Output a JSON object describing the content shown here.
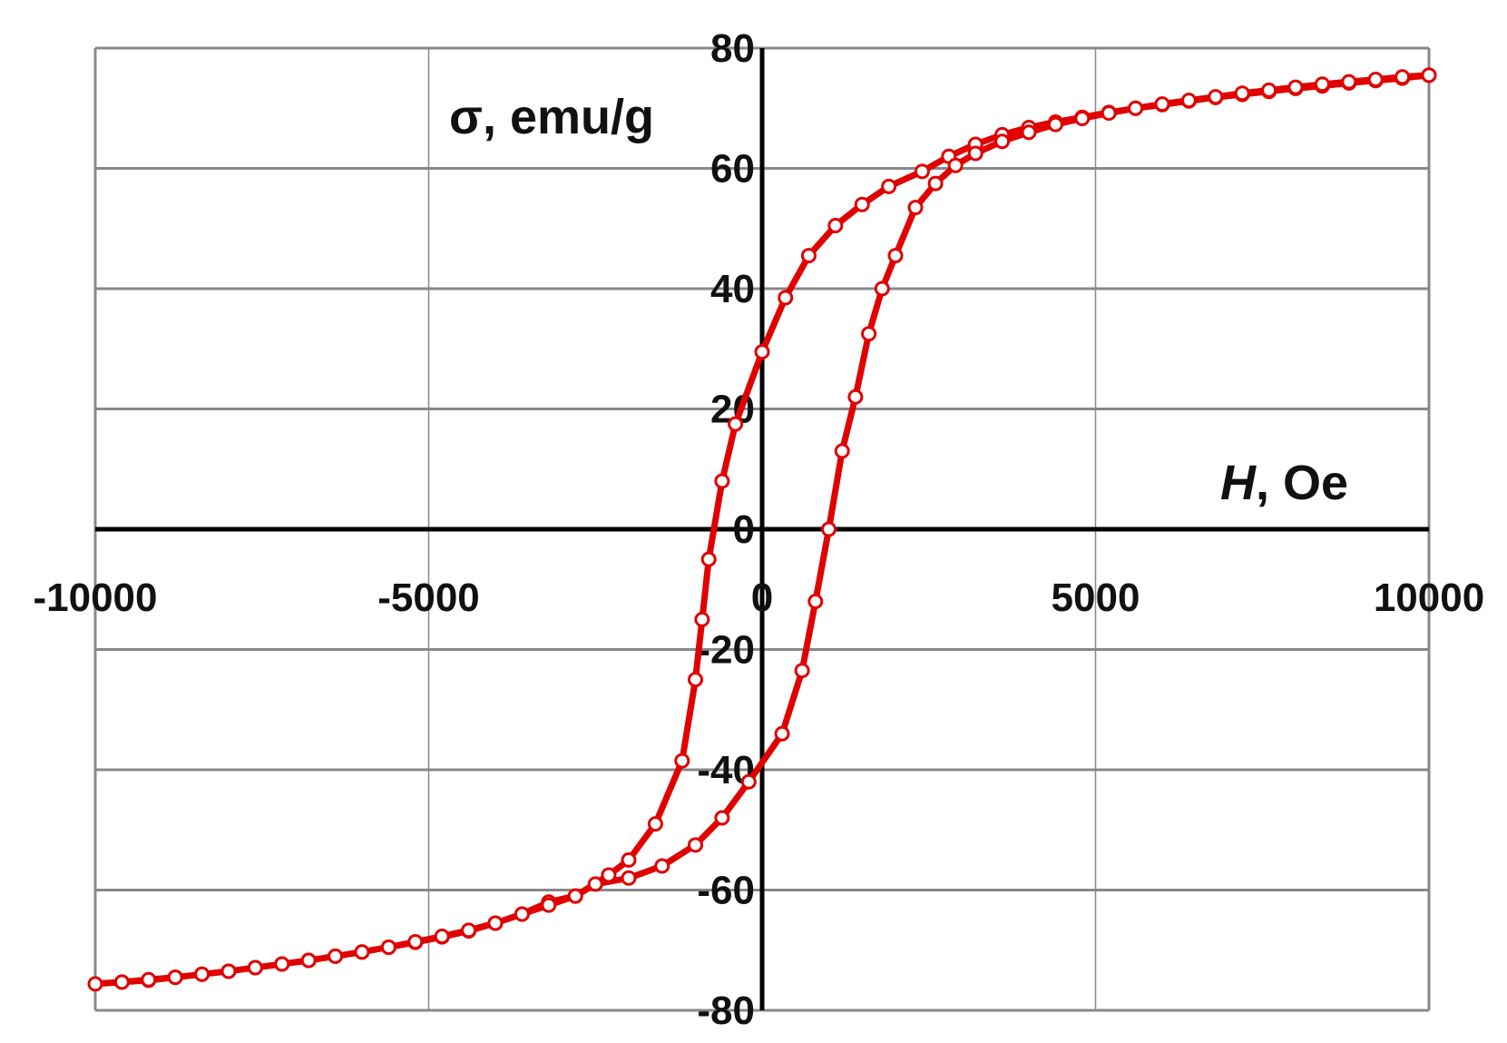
{
  "chart_data": {
    "type": "scatter",
    "xlabel_var": "H",
    "xlabel_unit": ", Oe",
    "ylabel": "σ, emu/g",
    "xlim": [
      -10000,
      10000
    ],
    "ylim": [
      -80,
      80
    ],
    "x_ticks": [
      -10000,
      -5000,
      0,
      5000,
      10000
    ],
    "y_ticks": [
      -80,
      -60,
      -40,
      -20,
      0,
      20,
      40,
      60,
      80
    ],
    "x_tick_labels": [
      "-10000",
      "-5000",
      "0",
      "5000",
      "10000"
    ],
    "y_tick_labels": [
      "-80",
      "-60",
      "-40",
      "-20",
      "0",
      "20",
      "40",
      "60",
      "80"
    ],
    "grid": true,
    "colors": {
      "series": "#e00000",
      "marker_fill": "#ffffff",
      "grid": "#888888",
      "axis": "#000000"
    },
    "series": [
      {
        "points": [
          [
            10000,
            75.5
          ],
          [
            9600,
            75.0
          ],
          [
            9200,
            74.6
          ],
          [
            8800,
            74.2
          ],
          [
            8400,
            73.7
          ],
          [
            8000,
            73.3
          ],
          [
            7600,
            72.8
          ],
          [
            7200,
            72.3
          ],
          [
            6800,
            71.8
          ],
          [
            6400,
            71.2
          ],
          [
            6000,
            70.6
          ],
          [
            5600,
            70.0
          ],
          [
            5200,
            69.3
          ],
          [
            4800,
            68.5
          ],
          [
            4400,
            67.7
          ],
          [
            4000,
            66.8
          ],
          [
            3600,
            65.6
          ],
          [
            3200,
            64.0
          ],
          [
            2800,
            62.0
          ],
          [
            2400,
            59.5
          ],
          [
            1900,
            57.0
          ],
          [
            1500,
            54.0
          ],
          [
            1100,
            50.5
          ],
          [
            700,
            45.5
          ],
          [
            350,
            38.5
          ],
          [
            0,
            29.5
          ],
          [
            -400,
            17.5
          ],
          [
            -600,
            8.0
          ],
          [
            -800,
            -5.0
          ],
          [
            -900,
            -15.0
          ],
          [
            -1000,
            -25.0
          ],
          [
            -1200,
            -38.5
          ],
          [
            -1600,
            -49.0
          ],
          [
            -2000,
            -55.0
          ],
          [
            -2300,
            -57.5
          ],
          [
            -2800,
            -61.0
          ],
          [
            -3200,
            -62.0
          ],
          [
            -3600,
            -64.0
          ],
          [
            -4000,
            -65.5
          ],
          [
            -4400,
            -66.8
          ],
          [
            -4800,
            -67.8
          ],
          [
            -5200,
            -68.7
          ],
          [
            -5600,
            -69.5
          ],
          [
            -6000,
            -70.3
          ],
          [
            -6400,
            -71.0
          ],
          [
            -6800,
            -71.7
          ],
          [
            -7200,
            -72.3
          ],
          [
            -7600,
            -72.9
          ],
          [
            -8000,
            -73.5
          ],
          [
            -8400,
            -74.0
          ],
          [
            -8800,
            -74.5
          ],
          [
            -9200,
            -75.0
          ],
          [
            -9600,
            -75.3
          ],
          [
            -10000,
            -75.6
          ],
          [
            -9600,
            -75.3
          ],
          [
            -9200,
            -74.9
          ],
          [
            -8800,
            -74.5
          ],
          [
            -8400,
            -74.0
          ],
          [
            -8000,
            -73.5
          ],
          [
            -7600,
            -72.9
          ],
          [
            -7200,
            -72.3
          ],
          [
            -6800,
            -71.7
          ],
          [
            -6400,
            -71.0
          ],
          [
            -6000,
            -70.3
          ],
          [
            -5600,
            -69.5
          ],
          [
            -5200,
            -68.6
          ],
          [
            -4800,
            -67.7
          ],
          [
            -4400,
            -66.7
          ],
          [
            -4000,
            -65.5
          ],
          [
            -3600,
            -64.0
          ],
          [
            -3200,
            -62.5
          ],
          [
            -2800,
            -61.0
          ],
          [
            -2500,
            -59.0
          ],
          [
            -2000,
            -58.0
          ],
          [
            -1500,
            -56.0
          ],
          [
            -1000,
            -52.5
          ],
          [
            -600,
            -48.0
          ],
          [
            -200,
            -42.0
          ],
          [
            300,
            -34.0
          ],
          [
            600,
            -23.5
          ],
          [
            800,
            -12.0
          ],
          [
            1000,
            0.0
          ],
          [
            1200,
            13.0
          ],
          [
            1400,
            22.0
          ],
          [
            1600,
            32.5
          ],
          [
            1800,
            40.0
          ],
          [
            2000,
            45.5
          ],
          [
            2300,
            53.5
          ],
          [
            2600,
            57.5
          ],
          [
            2900,
            60.5
          ],
          [
            3200,
            62.5
          ],
          [
            3600,
            64.5
          ],
          [
            4000,
            66.0
          ],
          [
            4400,
            67.3
          ],
          [
            4800,
            68.3
          ],
          [
            5200,
            69.2
          ],
          [
            5600,
            70.0
          ],
          [
            6000,
            70.7
          ],
          [
            6400,
            71.3
          ],
          [
            6800,
            71.9
          ],
          [
            7200,
            72.5
          ],
          [
            7600,
            73.0
          ],
          [
            8000,
            73.5
          ],
          [
            8400,
            74.0
          ],
          [
            8800,
            74.4
          ],
          [
            9200,
            74.8
          ],
          [
            9600,
            75.2
          ],
          [
            10000,
            75.5
          ]
        ]
      }
    ]
  }
}
